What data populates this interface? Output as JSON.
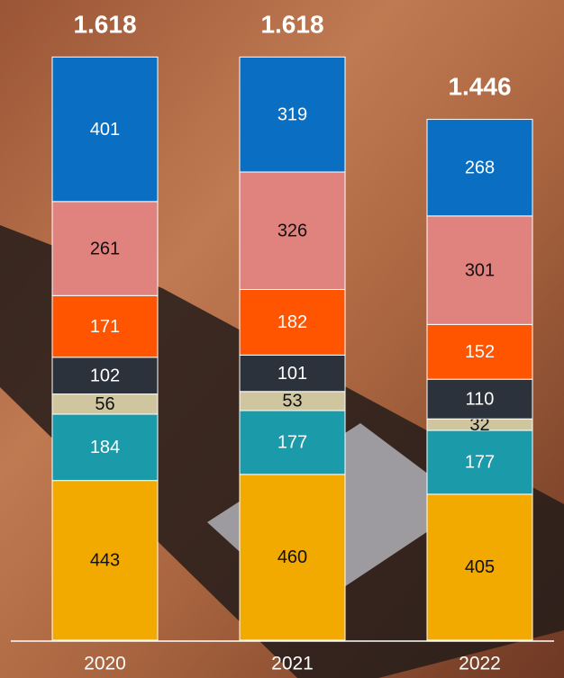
{
  "chart_data": {
    "type": "stacked-bar",
    "categories": [
      "2020",
      "2021",
      "2022"
    ],
    "series": [
      {
        "color": "#f2a900",
        "values": [
          443,
          460,
          405
        ]
      },
      {
        "color": "#1b9aaa",
        "values": [
          184,
          177,
          177
        ]
      },
      {
        "color": "#cfc6a0",
        "values": [
          56,
          53,
          32
        ]
      },
      {
        "color": "#2b323b",
        "values": [
          102,
          101,
          110
        ]
      },
      {
        "color": "#ff5500",
        "values": [
          171,
          182,
          152
        ]
      },
      {
        "color": "#e0827e",
        "values": [
          261,
          326,
          301
        ]
      },
      {
        "color": "#0a6fc2",
        "values": [
          401,
          319,
          268
        ]
      }
    ],
    "totals": {
      "values": [
        1618,
        1618,
        1446
      ],
      "value_labels": [
        "1.618",
        "1.618",
        "1.446"
      ]
    }
  }
}
